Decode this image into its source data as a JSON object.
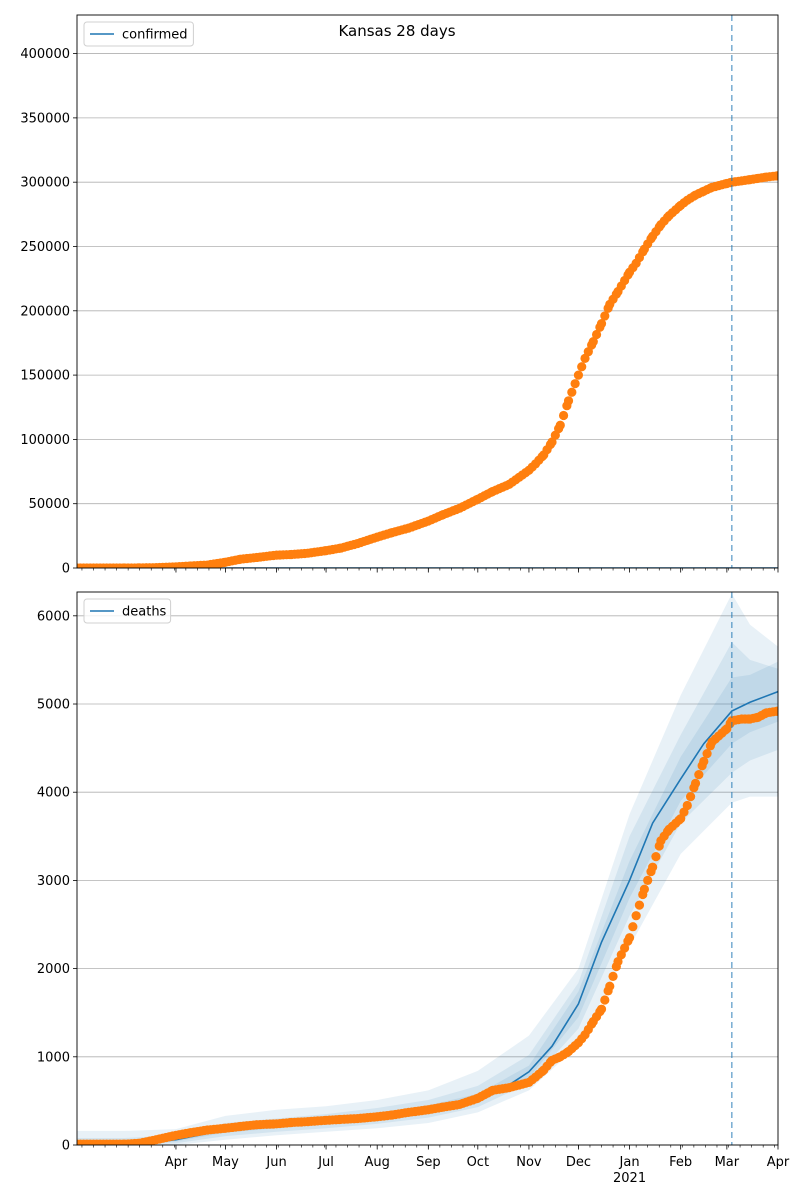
{
  "figure": {
    "title": "Kansas 28 days"
  },
  "colors": {
    "observed": "#ff7f0e",
    "model": "#1f77b4",
    "grid": "#b0b0b0"
  },
  "chart_data": [
    {
      "type": "line",
      "series": [
        {
          "name": "confirmed",
          "kind": "line",
          "x": [
            "2020-02-01",
            "2021-04-01"
          ],
          "y": [
            0,
            0
          ]
        },
        {
          "kind": "scatter",
          "x": [
            "2020-02-01",
            "2020-03-01",
            "2020-03-10",
            "2020-03-20",
            "2020-04-01",
            "2020-04-10",
            "2020-04-20",
            "2020-05-01",
            "2020-05-10",
            "2020-05-20",
            "2020-06-01",
            "2020-06-10",
            "2020-06-20",
            "2020-07-01",
            "2020-07-10",
            "2020-07-20",
            "2020-08-01",
            "2020-08-10",
            "2020-08-20",
            "2020-09-01",
            "2020-09-10",
            "2020-09-20",
            "2020-10-01",
            "2020-10-10",
            "2020-10-20",
            "2020-11-01",
            "2020-11-05",
            "2020-11-10",
            "2020-11-15",
            "2020-11-20",
            "2020-11-25",
            "2020-12-01",
            "2020-12-05",
            "2020-12-10",
            "2020-12-15",
            "2020-12-20",
            "2020-12-25",
            "2021-01-01",
            "2021-01-05",
            "2021-01-10",
            "2021-01-15",
            "2021-01-20",
            "2021-01-25",
            "2021-02-01",
            "2021-02-05",
            "2021-02-10",
            "2021-02-15",
            "2021-02-20",
            "2021-03-01",
            "2021-03-04",
            "2021-03-10",
            "2021-03-15",
            "2021-03-20",
            "2021-03-25",
            "2021-04-01"
          ],
          "y": [
            0,
            0,
            100,
            300,
            900,
            1600,
            2300,
            4500,
            6800,
            8200,
            10000,
            10500,
            11500,
            13500,
            15500,
            19000,
            24000,
            27500,
            31000,
            36500,
            41500,
            46500,
            53500,
            59500,
            65000,
            76000,
            81000,
            88000,
            98000,
            111000,
            130000,
            150000,
            163000,
            176000,
            190000,
            205000,
            215000,
            230000,
            237000,
            248000,
            258000,
            267000,
            274000,
            282000,
            286000,
            290000,
            293000,
            296000,
            299000,
            300000,
            301000,
            302000,
            303000,
            304000,
            305000
          ]
        }
      ],
      "xlim": [
        "2020-02-01",
        "2021-04-01"
      ],
      "ylim": [
        0,
        430000
      ],
      "yticks": [
        0,
        50000,
        100000,
        150000,
        200000,
        250000,
        300000,
        350000,
        400000
      ],
      "vline": "2021-03-04",
      "legend": {
        "loc": "upper-left"
      },
      "grid": "y"
    },
    {
      "type": "line",
      "series": [
        {
          "name": "deaths",
          "kind": "line",
          "x": [
            "2020-02-01",
            "2020-03-01",
            "2020-04-01",
            "2020-05-01",
            "2020-06-01",
            "2020-07-01",
            "2020-08-01",
            "2020-09-01",
            "2020-10-01",
            "2020-10-15",
            "2020-11-01",
            "2020-11-15",
            "2020-12-01",
            "2020-12-15",
            "2021-01-01",
            "2021-01-15",
            "2021-02-01",
            "2021-02-15",
            "2021-03-04",
            "2021-03-15",
            "2021-04-01"
          ],
          "y": [
            0,
            0,
            60,
            170,
            220,
            270,
            320,
            400,
            520,
            620,
            830,
            1120,
            1600,
            2300,
            3000,
            3650,
            4150,
            4550,
            4920,
            5020,
            5140
          ]
        },
        {
          "kind": "scatter",
          "x": [
            "2020-02-01",
            "2020-03-01",
            "2020-03-10",
            "2020-03-20",
            "2020-04-01",
            "2020-04-10",
            "2020-04-20",
            "2020-05-01",
            "2020-05-10",
            "2020-05-20",
            "2020-06-01",
            "2020-06-10",
            "2020-06-20",
            "2020-07-01",
            "2020-07-10",
            "2020-07-20",
            "2020-08-01",
            "2020-08-10",
            "2020-08-20",
            "2020-09-01",
            "2020-09-10",
            "2020-09-20",
            "2020-10-01",
            "2020-10-10",
            "2020-10-20",
            "2020-11-01",
            "2020-11-05",
            "2020-11-10",
            "2020-11-15",
            "2020-11-20",
            "2020-11-25",
            "2020-12-01",
            "2020-12-05",
            "2020-12-10",
            "2020-12-15",
            "2020-12-20",
            "2020-12-25",
            "2021-01-01",
            "2021-01-05",
            "2021-01-10",
            "2021-01-15",
            "2021-01-20",
            "2021-01-25",
            "2021-02-01",
            "2021-02-05",
            "2021-02-10",
            "2021-02-15",
            "2021-02-20",
            "2021-03-01",
            "2021-03-04",
            "2021-03-10",
            "2021-03-15",
            "2021-03-20",
            "2021-03-25",
            "2021-04-01"
          ],
          "y": [
            10,
            10,
            20,
            60,
            110,
            140,
            170,
            190,
            210,
            230,
            240,
            255,
            265,
            280,
            290,
            300,
            320,
            340,
            370,
            400,
            430,
            460,
            530,
            620,
            650,
            710,
            770,
            850,
            960,
            1000,
            1060,
            1160,
            1250,
            1400,
            1540,
            1800,
            2080,
            2350,
            2600,
            2900,
            3150,
            3450,
            3580,
            3700,
            3850,
            4100,
            4350,
            4570,
            4720,
            4810,
            4830,
            4830,
            4850,
            4900,
            4920
          ]
        }
      ],
      "bands": {
        "outer": {
          "x": [
            "2020-02-01",
            "2020-03-01",
            "2020-04-01",
            "2020-05-01",
            "2020-06-01",
            "2020-07-01",
            "2020-08-01",
            "2020-09-01",
            "2020-10-01",
            "2020-11-01",
            "2020-12-01",
            "2021-01-01",
            "2021-02-01",
            "2021-03-04",
            "2021-03-15",
            "2021-04-01"
          ],
          "lower": [
            0,
            0,
            0,
            60,
            110,
            150,
            190,
            250,
            370,
            620,
            1130,
            2250,
            3300,
            3880,
            3950,
            3950
          ],
          "upper": [
            160,
            160,
            180,
            330,
            400,
            440,
            510,
            620,
            840,
            1240,
            2000,
            3750,
            5100,
            6250,
            5900,
            5650
          ]
        },
        "middle": {
          "x": [
            "2020-02-01",
            "2020-03-01",
            "2020-04-01",
            "2020-05-01",
            "2020-06-01",
            "2020-07-01",
            "2020-08-01",
            "2020-09-01",
            "2020-10-01",
            "2020-11-01",
            "2020-12-01",
            "2021-01-01",
            "2021-02-01",
            "2021-03-04",
            "2021-03-15",
            "2021-04-01"
          ],
          "lower": [
            0,
            0,
            20,
            100,
            150,
            190,
            240,
            310,
            430,
            700,
            1320,
            2600,
            3650,
            4220,
            4360,
            4480
          ],
          "upper": [
            80,
            80,
            110,
            250,
            300,
            350,
            420,
            510,
            670,
            1020,
            1840,
            3500,
            4650,
            5700,
            5500,
            5400
          ]
        },
        "inner": {
          "x": [
            "2020-02-01",
            "2020-03-01",
            "2020-04-01",
            "2020-05-01",
            "2020-06-01",
            "2020-07-01",
            "2020-08-01",
            "2020-09-01",
            "2020-10-01",
            "2020-11-01",
            "2020-12-01",
            "2021-01-01",
            "2021-02-01",
            "2021-03-04",
            "2021-03-15",
            "2021-04-01"
          ],
          "lower": [
            0,
            0,
            40,
            140,
            190,
            240,
            290,
            360,
            480,
            760,
            1450,
            2800,
            3900,
            4550,
            4680,
            4800
          ],
          "upper": [
            40,
            40,
            80,
            200,
            250,
            300,
            360,
            450,
            580,
            900,
            1740,
            3220,
            4400,
            5300,
            5330,
            5480
          ]
        }
      },
      "xlim": [
        "2020-02-01",
        "2021-04-01"
      ],
      "ylim": [
        0,
        6270
      ],
      "yticks": [
        0,
        1000,
        2000,
        3000,
        4000,
        5000,
        6000
      ],
      "vline": "2021-03-04",
      "legend": {
        "loc": "upper-left"
      },
      "grid": "y"
    }
  ],
  "x_axis": {
    "ticks": [
      {
        "date": "2020-04-01",
        "label": "Apr"
      },
      {
        "date": "2020-05-01",
        "label": "May"
      },
      {
        "date": "2020-06-01",
        "label": "Jun"
      },
      {
        "date": "2020-07-01",
        "label": "Jul"
      },
      {
        "date": "2020-08-01",
        "label": "Aug"
      },
      {
        "date": "2020-09-01",
        "label": "Sep"
      },
      {
        "date": "2020-10-01",
        "label": "Oct"
      },
      {
        "date": "2020-11-01",
        "label": "Nov"
      },
      {
        "date": "2020-12-01",
        "label": "Dec"
      },
      {
        "date": "2021-01-01",
        "label": "Jan"
      },
      {
        "date": "2021-02-01",
        "label": "Feb"
      },
      {
        "date": "2021-03-01",
        "label": "Mar"
      },
      {
        "date": "2021-04-01",
        "label": "Apr"
      }
    ],
    "year_label": "2021"
  }
}
